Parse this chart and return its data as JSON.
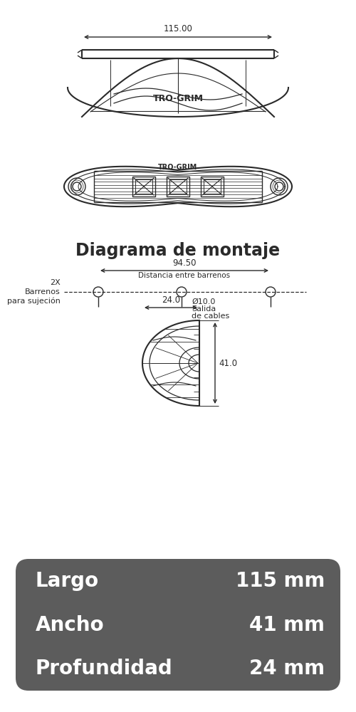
{
  "bg_color": "#ffffff",
  "line_color": "#2a2a2a",
  "title_text": "Diagrama de montaje",
  "brand": "TRO-GRIM",
  "dim_115": "115.00",
  "dim_94_50": "94.50",
  "dim_dist": "Distancia entre barrenos",
  "dim_dia": "Ø10.0",
  "dim_salida": "Salida\nde cables",
  "dim_2x": "2X\nBarrenos\npara sujeción",
  "dim_24": "24.0",
  "dim_41": "41.0",
  "spec_bg": "#5c5c5c",
  "spec_text_color": "#ffffff",
  "spec_rows": [
    [
      "Largo",
      "115 mm"
    ],
    [
      "Ancho",
      "41 mm"
    ],
    [
      "Profundidad",
      "24 mm"
    ]
  ],
  "spec_fontsize": 20,
  "figsize": [
    5.0,
    10.0
  ],
  "dpi": 100
}
